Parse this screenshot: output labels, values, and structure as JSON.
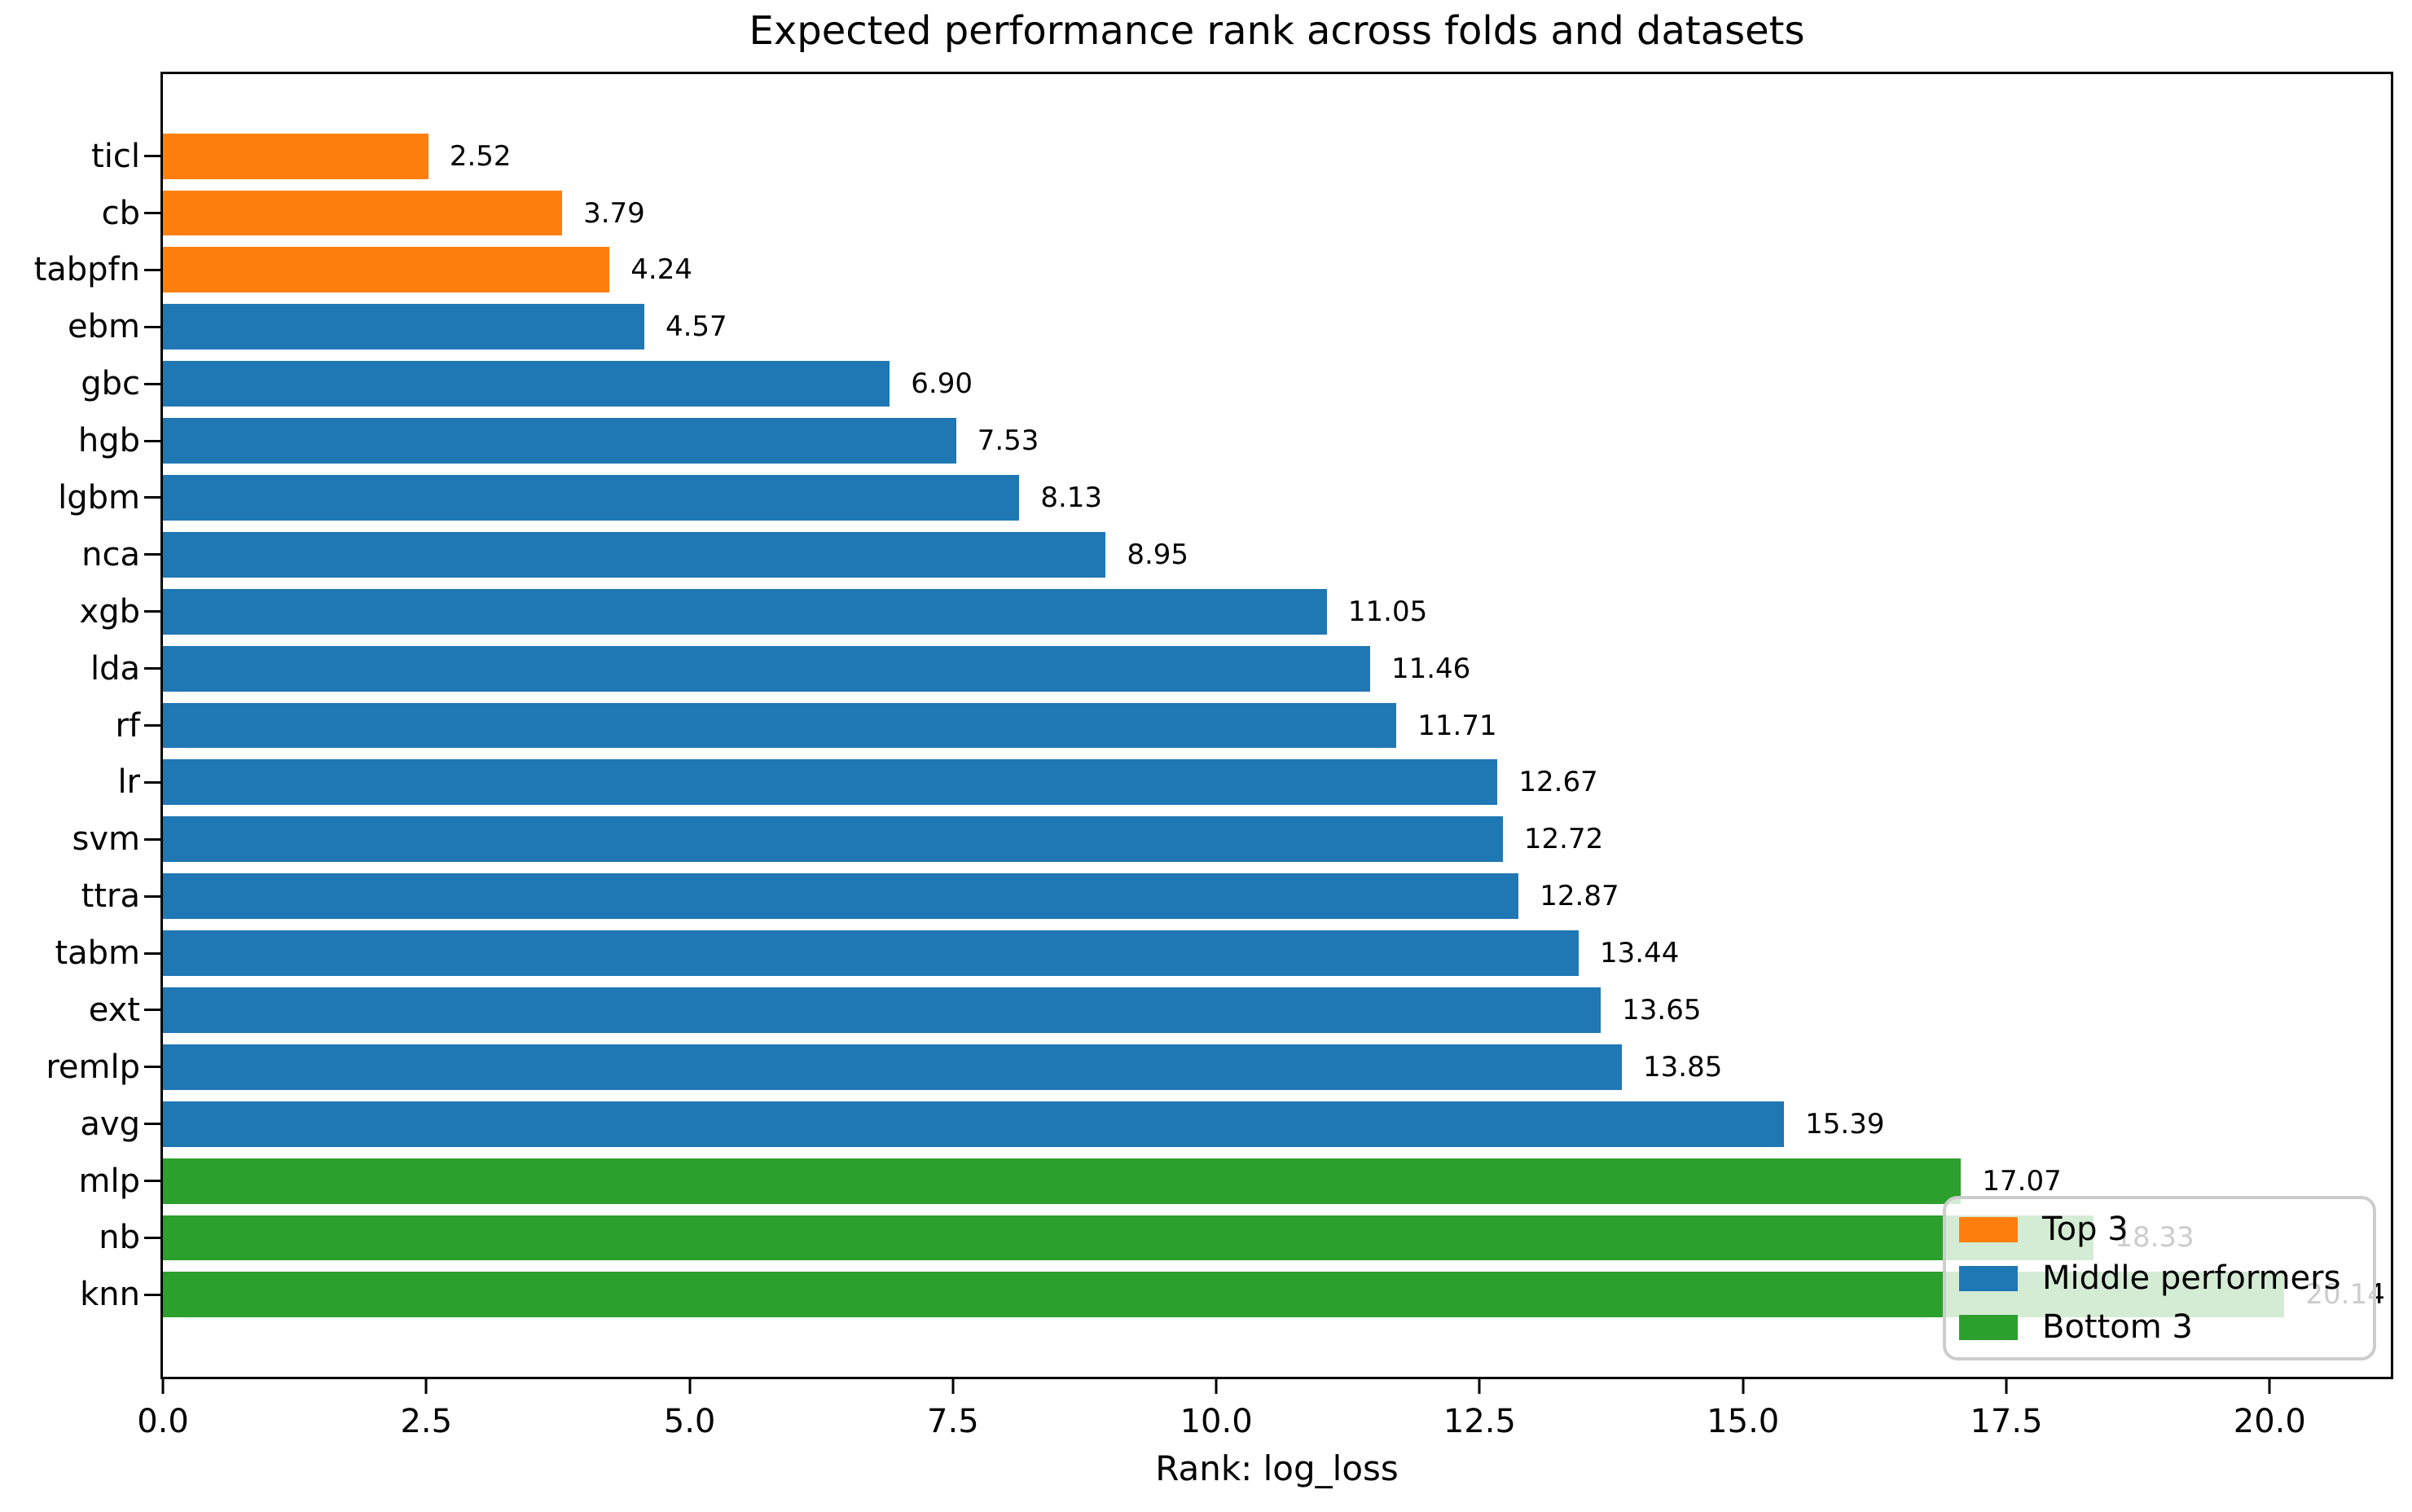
{
  "chart_data": {
    "type": "bar",
    "orientation": "horizontal",
    "title": "Expected performance rank across folds and datasets",
    "xlabel": "Rank: log_loss",
    "ylabel": "",
    "categories": [
      "ticl",
      "cb",
      "tabpfn",
      "ebm",
      "gbc",
      "hgb",
      "lgbm",
      "nca",
      "xgb",
      "lda",
      "rf",
      "lr",
      "svm",
      "ttra",
      "tabm",
      "ext",
      "remlp",
      "avg",
      "mlp",
      "nb",
      "knn"
    ],
    "values": [
      2.52,
      3.79,
      4.24,
      4.57,
      6.9,
      7.53,
      8.13,
      8.95,
      11.05,
      11.46,
      11.71,
      12.67,
      12.72,
      12.87,
      13.44,
      13.65,
      13.85,
      15.39,
      17.07,
      18.33,
      20.14
    ],
    "groups": [
      "top3",
      "top3",
      "top3",
      "middle",
      "middle",
      "middle",
      "middle",
      "middle",
      "middle",
      "middle",
      "middle",
      "middle",
      "middle",
      "middle",
      "middle",
      "middle",
      "middle",
      "middle",
      "bottom3",
      "bottom3",
      "bottom3"
    ],
    "colors": {
      "top3": "#ff7f0e",
      "middle": "#1f77b4",
      "bottom3": "#2ca02c"
    },
    "bar_width": 0.8,
    "grid": false,
    "xlim": [
      0,
      21.15
    ],
    "xticks": [
      {
        "value": 0,
        "label": "0.0"
      },
      {
        "value": 2.5,
        "label": "2.5"
      },
      {
        "value": 5,
        "label": "5.0"
      },
      {
        "value": 7.5,
        "label": "7.5"
      },
      {
        "value": 10,
        "label": "10.0"
      },
      {
        "value": 12.5,
        "label": "12.5"
      },
      {
        "value": 15,
        "label": "15.0"
      },
      {
        "value": 17.5,
        "label": "17.5"
      },
      {
        "value": 20,
        "label": "20.0"
      }
    ],
    "legend": {
      "position": "lower right",
      "entries": [
        {
          "key": "top3",
          "label": "Top 3",
          "color": "#ff7f0e"
        },
        {
          "key": "middle",
          "label": "Middle performers",
          "color": "#1f77b4"
        },
        {
          "key": "bottom3",
          "label": "Bottom 3",
          "color": "#2ca02c"
        }
      ]
    }
  }
}
